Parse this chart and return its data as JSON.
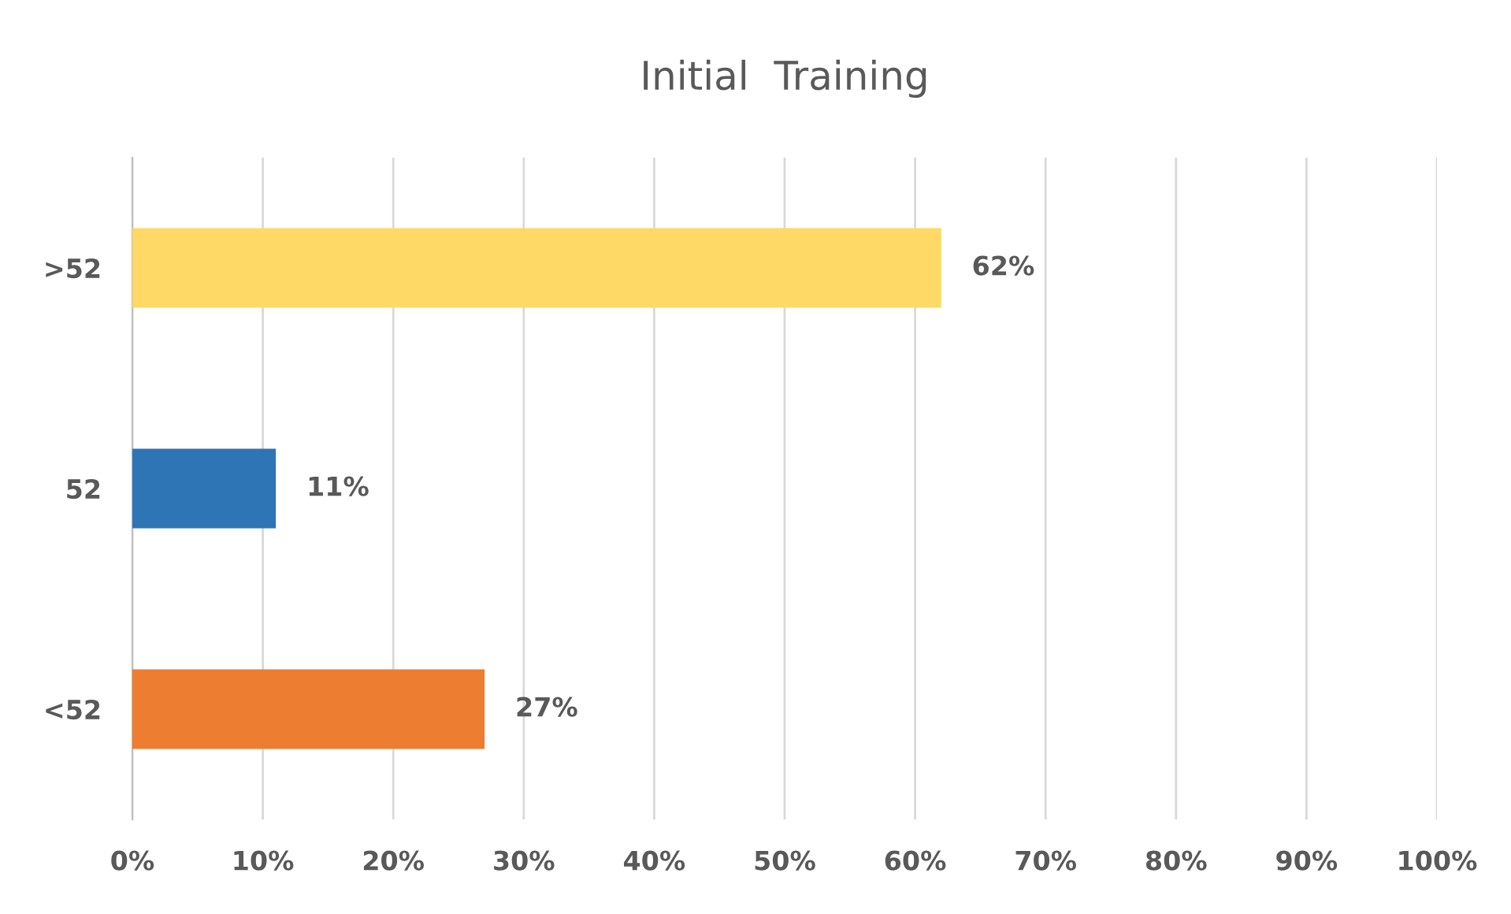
{
  "chart_data": {
    "type": "bar",
    "title": "Initial  Training",
    "orientation": "horizontal",
    "categories": [
      ">52",
      "52",
      "<52"
    ],
    "values": [
      62,
      11,
      27
    ],
    "colors": [
      "#ffd966",
      "#2e75b6",
      "#ed7d31"
    ],
    "value_labels": [
      "62%",
      "11%",
      "27%"
    ],
    "xlim": [
      0,
      100
    ],
    "xticks": [
      {
        "value": 0,
        "label": "0%"
      },
      {
        "value": 10,
        "label": "10%"
      },
      {
        "value": 20,
        "label": "20%"
      },
      {
        "value": 30,
        "label": "30%"
      },
      {
        "value": 40,
        "label": "40%"
      },
      {
        "value": 50,
        "label": "50%"
      },
      {
        "value": 60,
        "label": "60%"
      },
      {
        "value": 70,
        "label": "70%"
      },
      {
        "value": 80,
        "label": "80%"
      },
      {
        "value": 90,
        "label": "90%"
      },
      {
        "value": 100,
        "label": "100%"
      }
    ],
    "grid": "x",
    "legend": false
  }
}
